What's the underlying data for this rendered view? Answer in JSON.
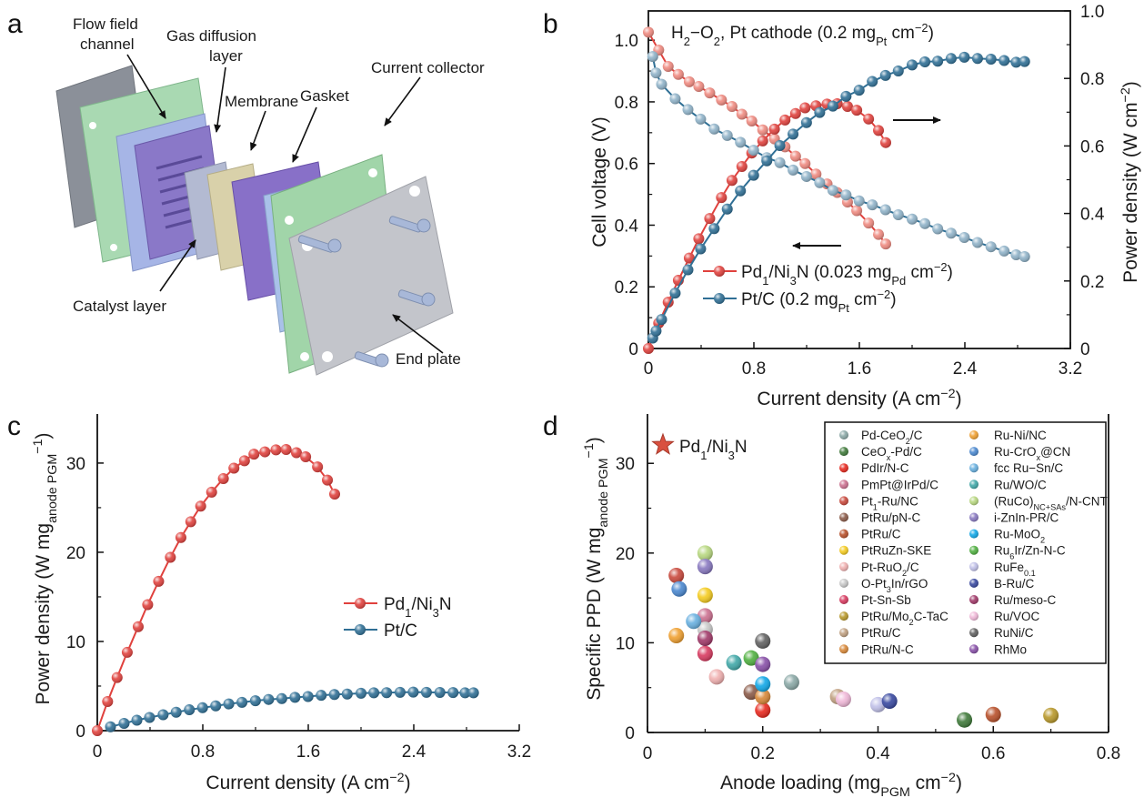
{
  "panels": {
    "a": "a",
    "b": "b",
    "c": "c",
    "d": "d"
  },
  "schematic": {
    "flow_field_1": "Flow field",
    "flow_field_2": "channel",
    "gdl_1": "Gas diffusion",
    "gdl_2": "layer",
    "membrane": "Membrane",
    "gasket": "Gasket",
    "current_collector": "Current collector",
    "catalyst_layer": "Catalyst layer",
    "end_plate": "End plate"
  },
  "chart_data": [
    {
      "id": "b",
      "type": "line",
      "annotation": [
        [
          "H",
          ""
        ],
        [
          "2",
          "sub"
        ],
        [
          "−O",
          ""
        ],
        [
          "2",
          "sub"
        ],
        [
          ", Pt cathode (0.2 mg",
          ""
        ],
        [
          "Pt",
          "sub"
        ],
        [
          " cm",
          ""
        ],
        [
          "−2",
          "sup"
        ],
        [
          ")",
          ""
        ]
      ],
      "xlabel": [
        [
          "Current density (A cm",
          ""
        ],
        [
          "−2",
          "sup"
        ],
        [
          ")",
          ""
        ]
      ],
      "ylabel_left": [
        [
          "Cell voltage (V)",
          ""
        ]
      ],
      "ylabel_right": [
        [
          "Power density (W cm",
          ""
        ],
        [
          "−2",
          "sup"
        ],
        [
          ")",
          ""
        ]
      ],
      "xlim": [
        0,
        3.2
      ],
      "ylim_left": [
        0,
        1.095
      ],
      "ylim_right": [
        0,
        1.0
      ],
      "xticks": [
        "0",
        "0.8",
        "1.6",
        "2.4",
        "3.2"
      ],
      "yticks_left": [
        "0",
        "0.2",
        "0.4",
        "0.6",
        "0.8",
        "1.0"
      ],
      "yticks_right": [
        "0",
        "0.2",
        "0.4",
        "0.6",
        "0.8",
        "1.0"
      ],
      "arrows": [
        "right axis: power",
        "left axis: voltage"
      ],
      "series": [
        {
          "name": [
            [
              "Pd",
              ""
            ],
            [
              "1",
              "sub"
            ],
            [
              "/Ni",
              ""
            ],
            [
              "3",
              "sub"
            ],
            [
              "N (0.023 mg",
              ""
            ],
            [
              "Pd",
              "sub"
            ],
            [
              " cm",
              ""
            ],
            [
              "−2",
              "sup"
            ],
            [
              ")",
              ""
            ]
          ],
          "color": "#e0413d",
          "current": [
            0,
            0.078,
            0.15,
            0.227,
            0.31,
            0.382,
            0.465,
            0.554,
            0.634,
            0.709,
            0.784,
            0.867,
            0.956,
            1.036,
            1.116,
            1.188,
            1.271,
            1.355,
            1.432,
            1.51,
            1.58,
            1.67,
            1.745,
            1.8
          ],
          "voltage": [
            1.026,
            0.968,
            0.915,
            0.889,
            0.865,
            0.85,
            0.829,
            0.806,
            0.785,
            0.76,
            0.738,
            0.709,
            0.68,
            0.654,
            0.624,
            0.6,
            0.566,
            0.534,
            0.506,
            0.475,
            0.447,
            0.407,
            0.37,
            0.339
          ],
          "power": [
            0,
            0.075,
            0.137,
            0.202,
            0.268,
            0.325,
            0.385,
            0.447,
            0.498,
            0.539,
            0.579,
            0.615,
            0.65,
            0.677,
            0.696,
            0.713,
            0.719,
            0.724,
            0.725,
            0.717,
            0.706,
            0.68,
            0.646,
            0.61
          ]
        },
        {
          "name": [
            [
              "Pt/C (0.2 mg",
              ""
            ],
            [
              "Pt",
              "sub"
            ],
            [
              " cm",
              ""
            ],
            [
              "−2",
              "sup"
            ],
            [
              ")",
              ""
            ]
          ],
          "color": "#2f6f95",
          "current": [
            0.033,
            0.058,
            0.1,
            0.203,
            0.3,
            0.396,
            0.499,
            0.598,
            0.698,
            0.798,
            0.898,
            0.997,
            1.097,
            1.199,
            1.299,
            1.399,
            1.499,
            1.598,
            1.698,
            1.798,
            1.895,
            2.0,
            2.097,
            2.194,
            2.296,
            2.396,
            2.496,
            2.598,
            2.698,
            2.789,
            2.853
          ],
          "voltage": [
            0.947,
            0.894,
            0.857,
            0.81,
            0.775,
            0.744,
            0.712,
            0.691,
            0.669,
            0.643,
            0.619,
            0.603,
            0.579,
            0.558,
            0.538,
            0.513,
            0.498,
            0.479,
            0.466,
            0.45,
            0.434,
            0.42,
            0.405,
            0.388,
            0.374,
            0.36,
            0.344,
            0.33,
            0.316,
            0.304,
            0.298
          ],
          "power": [
            0.031,
            0.052,
            0.086,
            0.164,
            0.233,
            0.295,
            0.355,
            0.413,
            0.467,
            0.513,
            0.556,
            0.601,
            0.635,
            0.669,
            0.699,
            0.718,
            0.747,
            0.765,
            0.791,
            0.809,
            0.822,
            0.84,
            0.849,
            0.851,
            0.859,
            0.863,
            0.859,
            0.857,
            0.853,
            0.848,
            0.85
          ]
        }
      ]
    },
    {
      "id": "c",
      "type": "line",
      "xlabel": [
        [
          "Current density (A cm",
          ""
        ],
        [
          "−2",
          "sup"
        ],
        [
          ")",
          ""
        ]
      ],
      "ylabel": [
        [
          "Power density (W mg",
          ""
        ],
        [
          "anode PGM",
          "sub"
        ],
        [
          "−1",
          "sup"
        ],
        [
          ")",
          ""
        ]
      ],
      "xlim": [
        0,
        3.2
      ],
      "ylim": [
        0,
        35.5
      ],
      "xticks": [
        "0",
        "0.8",
        "1.6",
        "2.4",
        "3.2"
      ],
      "yticks": [
        "0",
        "10",
        "20",
        "30"
      ],
      "series": [
        {
          "name": [
            [
              "Pd",
              ""
            ],
            [
              "1",
              "sub"
            ],
            [
              "/Ni",
              ""
            ],
            [
              "3",
              "sub"
            ],
            [
              "N",
              ""
            ]
          ],
          "color": "#e0413d",
          "current": [
            0,
            0.078,
            0.15,
            0.227,
            0.31,
            0.382,
            0.465,
            0.554,
            0.634,
            0.709,
            0.784,
            0.867,
            0.956,
            1.036,
            1.116,
            1.188,
            1.271,
            1.355,
            1.432,
            1.51,
            1.58,
            1.67,
            1.745,
            1.8
          ],
          "specific_power": [
            0,
            3.26,
            5.96,
            8.78,
            11.65,
            14.13,
            16.74,
            19.43,
            21.65,
            23.43,
            25.17,
            26.74,
            28.26,
            29.43,
            30.26,
            31.0,
            31.26,
            31.48,
            31.52,
            31.17,
            30.7,
            29.57,
            28.09,
            26.52
          ]
        },
        {
          "name": [
            [
              "Pt/C",
              ""
            ]
          ],
          "color": "#2f6f95",
          "current": [
            0.1,
            0.203,
            0.3,
            0.396,
            0.499,
            0.598,
            0.698,
            0.798,
            0.898,
            0.997,
            1.097,
            1.199,
            1.299,
            1.399,
            1.499,
            1.598,
            1.698,
            1.798,
            1.895,
            2.0,
            2.097,
            2.194,
            2.296,
            2.396,
            2.496,
            2.598,
            2.698,
            2.789,
            2.853
          ],
          "specific_power": [
            0.43,
            0.82,
            1.17,
            1.48,
            1.78,
            2.07,
            2.34,
            2.57,
            2.78,
            3.0,
            3.18,
            3.35,
            3.5,
            3.59,
            3.74,
            3.83,
            3.96,
            4.05,
            4.11,
            4.2,
            4.25,
            4.26,
            4.3,
            4.32,
            4.3,
            4.29,
            4.27,
            4.24,
            4.25
          ]
        }
      ]
    },
    {
      "id": "d",
      "type": "scatter",
      "xlabel": [
        [
          "Anode loading (mg",
          ""
        ],
        [
          "PGM",
          "sub"
        ],
        [
          " cm",
          ""
        ],
        [
          "−2",
          "sup"
        ],
        [
          ")",
          ""
        ]
      ],
      "ylabel": [
        [
          "Specific PPD (W mg",
          ""
        ],
        [
          "anode PGM",
          "sub"
        ],
        [
          "−1",
          "sup"
        ],
        [
          ")",
          ""
        ]
      ],
      "xlim": [
        0,
        0.8
      ],
      "ylim": [
        0,
        35.5
      ],
      "xticks": [
        "0",
        "0.2",
        "0.4",
        "0.6",
        "0.8"
      ],
      "yticks": [
        "0",
        "10",
        "20",
        "30"
      ],
      "highlight": {
        "name": [
          [
            "Pd",
            ""
          ],
          [
            "1",
            "sub"
          ],
          [
            "/Ni",
            ""
          ],
          [
            "3",
            "sub"
          ],
          [
            "N",
            ""
          ]
        ],
        "color": "#d9503f",
        "marker": "star"
      },
      "points": [
        {
          "name": [
            [
              "Pd-CeO",
              ""
            ],
            [
              "2",
              "sub"
            ],
            [
              "/C",
              ""
            ]
          ],
          "color": "#8aa8a6",
          "x": 0.25,
          "y": 5.6
        },
        {
          "name": [
            [
              "CeO",
              ""
            ],
            [
              "x",
              "sub"
            ],
            [
              "-Pd/C",
              ""
            ]
          ],
          "color": "#3f7a3a",
          "x": 0.55,
          "y": 1.4
        },
        {
          "name": [
            [
              "PdIr/N-C",
              ""
            ]
          ],
          "color": "#e8281e",
          "x": 0.2,
          "y": 2.5
        },
        {
          "name": [
            [
              "PmPt@IrPd/C",
              ""
            ]
          ],
          "color": "#cc7090",
          "x": 0.1,
          "y": 13.0
        },
        {
          "name": [
            [
              "Pt",
              ""
            ],
            [
              "1",
              "sub"
            ],
            [
              "-Ru/NC",
              ""
            ]
          ],
          "color": "#c9483c",
          "x": 0.05,
          "y": 17.5
        },
        {
          "name": [
            [
              "PtRu/pN-C",
              ""
            ]
          ],
          "color": "#8a5a48",
          "x": 0.18,
          "y": 4.5
        },
        {
          "name": [
            [
              "PtRu/C",
              ""
            ]
          ],
          "color": "#b8502a",
          "x": 0.6,
          "y": 2.0
        },
        {
          "name": [
            [
              "PtRuZn-SKE",
              ""
            ]
          ],
          "color": "#f5cc20",
          "x": 0.1,
          "y": 15.3
        },
        {
          "name": [
            [
              "Pt-RuO",
              ""
            ],
            [
              "2",
              "sub"
            ],
            [
              "/C",
              ""
            ]
          ],
          "color": "#f0b0b0",
          "x": 0.12,
          "y": 6.2
        },
        {
          "name": [
            [
              "O-Pt",
              ""
            ],
            [
              "3",
              "sub"
            ],
            [
              "In/rGO",
              ""
            ]
          ],
          "color": "#c8c8c8",
          "x": 0.1,
          "y": 11.5
        },
        {
          "name": [
            [
              "Pt-Sn-Sb",
              ""
            ]
          ],
          "color": "#d83a60",
          "x": 0.1,
          "y": 8.8
        },
        {
          "name": [
            [
              "PtRu/Mo",
              ""
            ],
            [
              "2",
              "sub"
            ],
            [
              "C-TaC",
              ""
            ]
          ],
          "color": "#b8982a",
          "x": 0.7,
          "y": 1.9
        },
        {
          "name": [
            [
              "PtRu/C",
              ""
            ]
          ],
          "color": "#c0a080",
          "x": 0.33,
          "y": 4.0
        },
        {
          "name": [
            [
              "PtRu/N-C",
              ""
            ]
          ],
          "color": "#d88838",
          "x": 0.2,
          "y": 4.0
        },
        {
          "name": [
            [
              "Ru-Ni/NC",
              ""
            ]
          ],
          "color": "#f0a030",
          "x": 0.05,
          "y": 10.8
        },
        {
          "name": [
            [
              "Ru-CrO",
              ""
            ],
            [
              "x",
              "sub"
            ],
            [
              "@CN",
              ""
            ]
          ],
          "color": "#4a88d0",
          "x": 0.055,
          "y": 16.0
        },
        {
          "name": [
            [
              "fcc Ru−Sn/C",
              ""
            ]
          ],
          "color": "#68b0e0",
          "x": 0.08,
          "y": 12.4
        },
        {
          "name": [
            [
              "Ru/WO/C",
              ""
            ]
          ],
          "color": "#40a8a8",
          "x": 0.15,
          "y": 7.8
        },
        {
          "name": [
            [
              "(RuCo)",
              ""
            ],
            [
              "NC+SAs",
              "sub"
            ],
            [
              "/N-CNT",
              ""
            ]
          ],
          "color": "#b8d880",
          "x": 0.1,
          "y": 20.0
        },
        {
          "name": [
            [
              "i-ZnIn-PR/C",
              ""
            ]
          ],
          "color": "#8878c0",
          "x": 0.1,
          "y": 18.5
        },
        {
          "name": [
            [
              "Ru-MoO",
              ""
            ],
            [
              "2",
              "sub"
            ]
          ],
          "color": "#10a8e8",
          "x": 0.2,
          "y": 5.4
        },
        {
          "name": [
            [
              "Ru",
              ""
            ],
            [
              "6",
              "sub"
            ],
            [
              "Ir/Zn-N-C",
              ""
            ]
          ],
          "color": "#50b040",
          "x": 0.18,
          "y": 8.3
        },
        {
          "name": [
            [
              "RuFe",
              ""
            ],
            [
              "0.1",
              "sub"
            ]
          ],
          "color": "#c0c0e8",
          "x": 0.4,
          "y": 3.1
        },
        {
          "name": [
            [
              "B-Ru/C",
              ""
            ]
          ],
          "color": "#3848a0",
          "x": 0.42,
          "y": 3.5
        },
        {
          "name": [
            [
              "Ru/meso-C",
              ""
            ]
          ],
          "color": "#a03868",
          "x": 0.1,
          "y": 10.5
        },
        {
          "name": [
            [
              "Ru/VOC",
              ""
            ]
          ],
          "color": "#f0b8d8",
          "x": 0.34,
          "y": 3.7
        },
        {
          "name": [
            [
              "RuNi/C",
              ""
            ]
          ],
          "color": "#606060",
          "x": 0.2,
          "y": 10.2
        },
        {
          "name": [
            [
              "RhMo",
              ""
            ]
          ],
          "color": "#8850a8",
          "x": 0.2,
          "y": 7.6
        }
      ]
    }
  ]
}
